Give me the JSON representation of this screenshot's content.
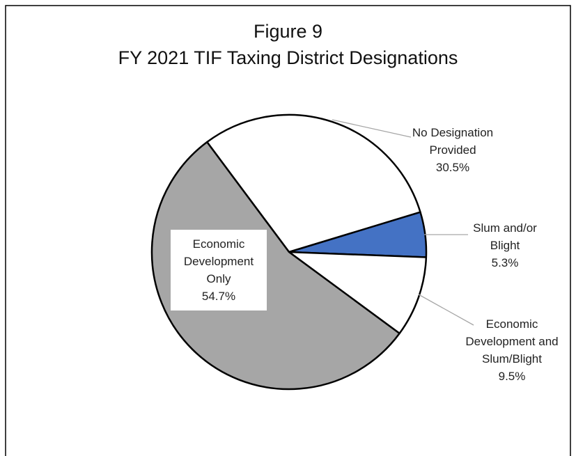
{
  "chart_data": {
    "type": "pie",
    "title": "Figure 9",
    "subtitle": "FY 2021 TIF Taxing District Designations",
    "categories": [
      "No Designation Provided",
      "Slum and/or Blight",
      "Economic Development and Slum/Blight",
      "Economic Development Only"
    ],
    "values": [
      30.5,
      5.3,
      9.5,
      54.7
    ],
    "value_labels": [
      "30.5%",
      "5.3%",
      "9.5%",
      "54.7%"
    ],
    "colors": [
      "#ffffff",
      "#4472c4",
      "#ffffff",
      "#a6a6a6"
    ]
  }
}
